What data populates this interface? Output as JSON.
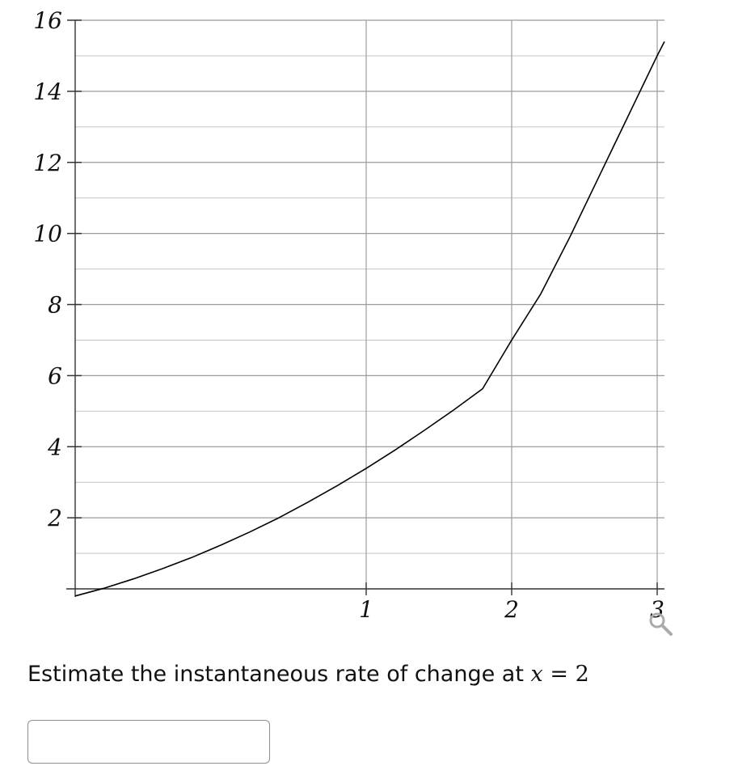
{
  "chart_data": {
    "type": "line",
    "title": "",
    "xlabel": "",
    "ylabel": "",
    "xlim": [
      -1.0,
      3.05
    ],
    "ylim": [
      -0.2,
      16
    ],
    "x_ticks": [
      1,
      2,
      3
    ],
    "x_tick_labels": [
      "1",
      "2",
      "3"
    ],
    "y_ticks": [
      2,
      4,
      6,
      8,
      10,
      12,
      14,
      16
    ],
    "y_tick_labels": [
      "2",
      "4",
      "6",
      "8",
      "10",
      "12",
      "14",
      "16"
    ],
    "grid": true,
    "minor_grid_y_step": 1,
    "series": [
      {
        "x": [
          -1.0,
          -0.8,
          -0.6,
          -0.4,
          -0.2,
          0.0,
          0.2,
          0.4,
          0.6,
          0.8,
          1.0,
          1.2,
          1.4,
          1.6,
          1.8,
          2.0,
          2.2,
          2.4,
          2.6,
          2.8,
          3.0,
          3.05
        ],
        "y": [
          -0.2,
          0.02,
          0.28,
          0.57,
          0.88,
          1.23,
          1.6,
          2.0,
          2.44,
          2.9,
          3.39,
          3.91,
          4.46,
          5.03,
          5.63,
          7.0,
          8.3,
          9.9,
          11.6,
          13.3,
          15.0,
          15.4
        ],
        "color": "#000000"
      }
    ]
  },
  "question": {
    "prefix": "Estimate the instantaneous rate of change at",
    "variable": "x",
    "equals": "=",
    "value": "2"
  },
  "answer": {
    "value": "",
    "placeholder": ""
  },
  "icons": {
    "zoom": "magnifier-icon"
  }
}
